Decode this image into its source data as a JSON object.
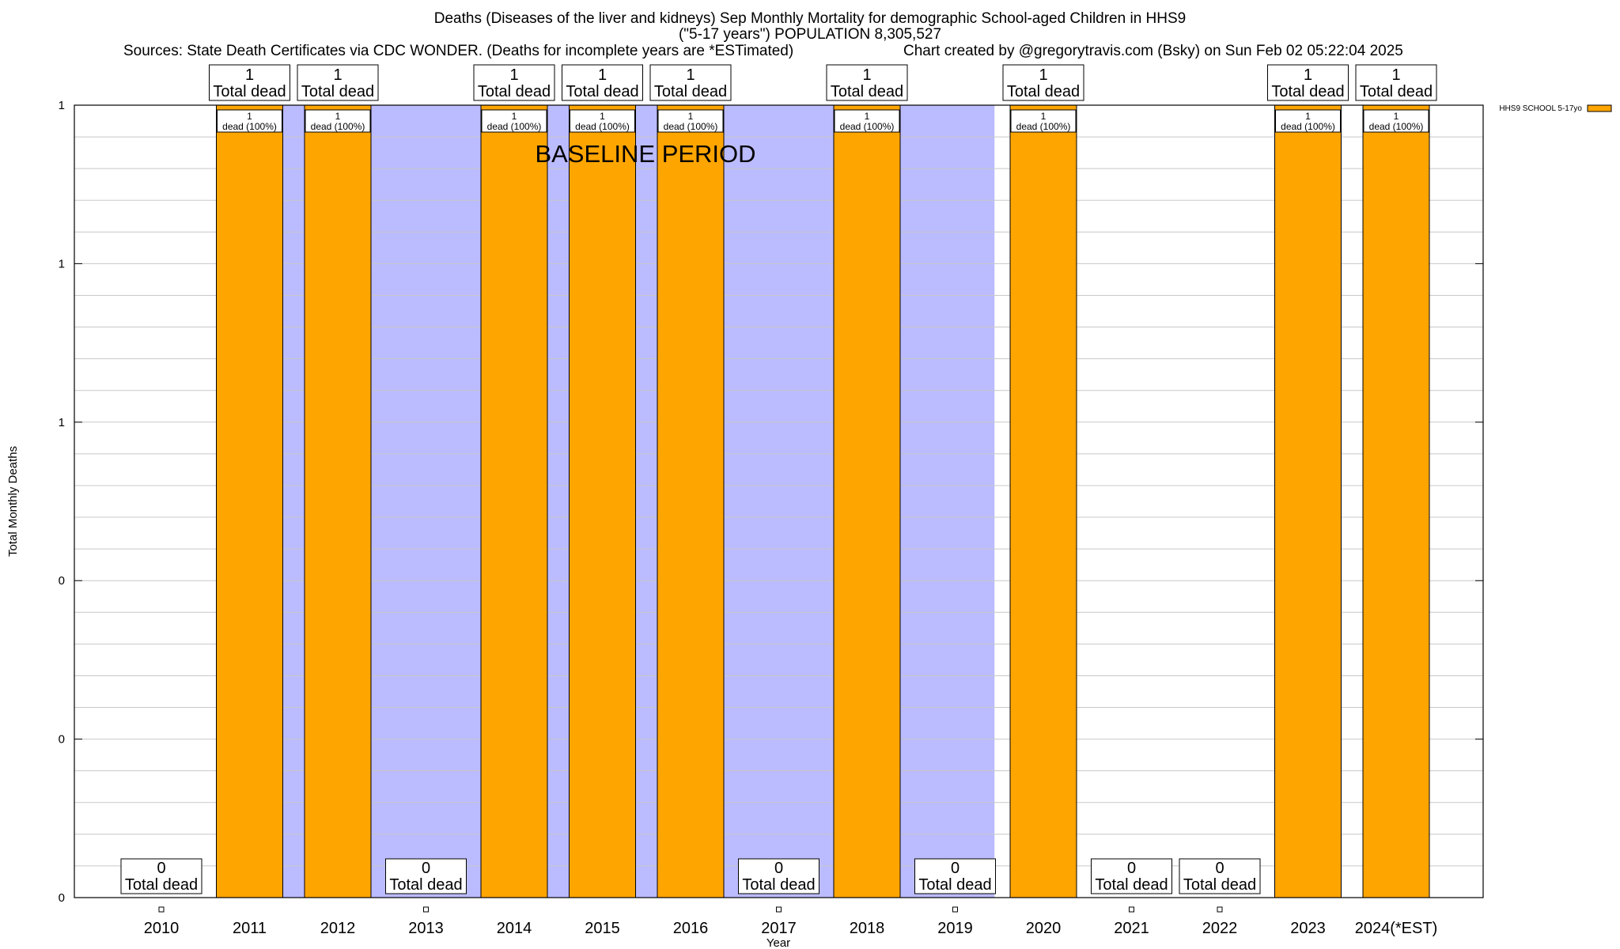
{
  "chart_data": {
    "type": "bar",
    "title_line1": "Deaths (Diseases of the liver and kidneys) Sep Monthly Mortality for demographic School-aged Children in HHS9",
    "title_line2": "(\"5-17 years\") POPULATION 8,305,527",
    "sources": "Sources: State Death Certificates via CDC WONDER. (Deaths for incomplete years are *ESTimated)",
    "credit": "Chart created by @gregorytravis.com (Bsky) on Sun Feb 02 05:22:04 2025",
    "xlabel": "Year",
    "ylabel": "Total Monthly Deaths",
    "categories": [
      "2010",
      "2011",
      "2012",
      "2013",
      "2014",
      "2015",
      "2016",
      "2017",
      "2018",
      "2019",
      "2020",
      "2021",
      "2022",
      "2023",
      "2024(*EST)"
    ],
    "series": [
      {
        "name": "HHS9 SCHOOL 5-17yo",
        "color": "#ffa500",
        "values": [
          0,
          1,
          1,
          0,
          1,
          1,
          1,
          0,
          1,
          0,
          1,
          0,
          0,
          1,
          1
        ]
      }
    ],
    "ylim": [
      0,
      1
    ],
    "yticks": [
      {
        "value": 0,
        "label": "0"
      },
      {
        "value": 0.2,
        "label": "0"
      },
      {
        "value": 0.4,
        "label": "0"
      },
      {
        "value": 0.6,
        "label": "1"
      },
      {
        "value": 0.8,
        "label": "1"
      },
      {
        "value": 1.0,
        "label": "1"
      }
    ],
    "total_label_text": "Total dead",
    "inner_label_text": "dead (100%)",
    "baseline_label": "BASELINE PERIOD",
    "baseline_range": [
      "2012",
      "2019"
    ],
    "baseline_color": "#bbbbff",
    "legend_position": "top-right",
    "grid": true
  }
}
